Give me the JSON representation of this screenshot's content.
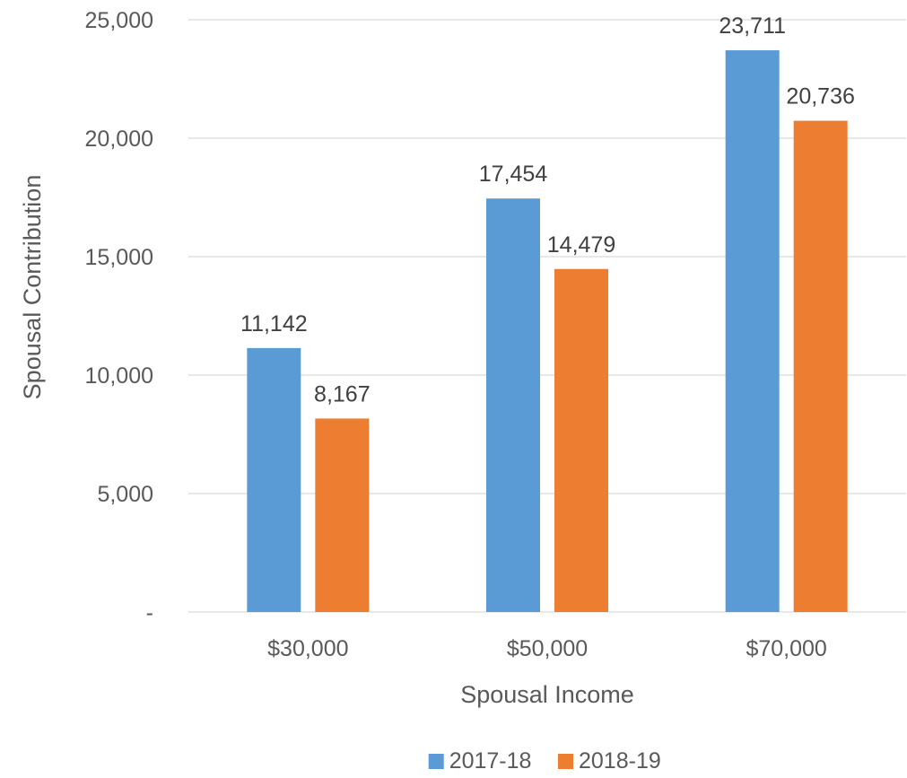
{
  "chart_data": {
    "type": "bar",
    "title": "",
    "xlabel": "Spousal Income",
    "ylabel": "Spousal Contribution",
    "categories": [
      "$30,000",
      "$50,000",
      "$70,000"
    ],
    "series": [
      {
        "name": "2017-18",
        "values": [
          11142,
          17454,
          23711
        ],
        "labels": [
          "11,142",
          "17,454",
          "23,711"
        ],
        "color": "#5B9BD5"
      },
      {
        "name": "2018-19",
        "values": [
          8167,
          14479,
          20736
        ],
        "labels": [
          "8,167",
          "14,479",
          "20,736"
        ],
        "color": "#ED7D31"
      }
    ],
    "ylim": [
      0,
      25000
    ],
    "yticks": [
      0,
      5000,
      10000,
      15000,
      20000,
      25000
    ],
    "ytick_labels": [
      "-",
      "5,000",
      "10,000",
      "15,000",
      "20,000",
      "25,000"
    ],
    "grid": true,
    "legend_position": "bottom"
  }
}
